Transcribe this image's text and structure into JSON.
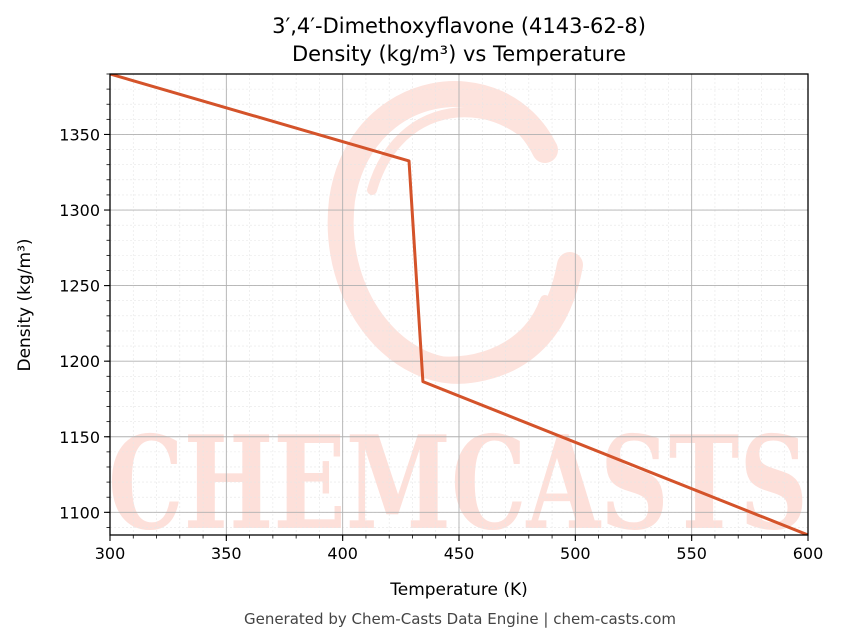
{
  "chart_data": {
    "type": "line",
    "title_line1": "3′,4′-Dimethoxyflavone (4143-62-8)",
    "title_line2": "Density (kg/m³) vs Temperature",
    "xlabel": "Temperature (K)",
    "ylabel": "Density (kg/m³)",
    "xlim": [
      300,
      600
    ],
    "ylim": [
      1085,
      1390
    ],
    "x_ticks": [
      300,
      350,
      400,
      450,
      500,
      550,
      600
    ],
    "y_ticks": [
      1100,
      1150,
      1200,
      1250,
      1300,
      1350
    ],
    "x_minor_step": 10,
    "y_minor_step": 10,
    "grid": true,
    "series": [
      {
        "color": "#d4532a",
        "points": [
          [
            300,
            1390
          ],
          [
            428.5,
            1332.5
          ],
          [
            434.5,
            1186.5
          ],
          [
            600,
            1085
          ]
        ]
      }
    ]
  },
  "watermark": {
    "text": "CHEMCASTS",
    "color": "#fde0da"
  },
  "footer": {
    "text": "Generated by Chem-Casts Data Engine | chem-casts.com"
  }
}
